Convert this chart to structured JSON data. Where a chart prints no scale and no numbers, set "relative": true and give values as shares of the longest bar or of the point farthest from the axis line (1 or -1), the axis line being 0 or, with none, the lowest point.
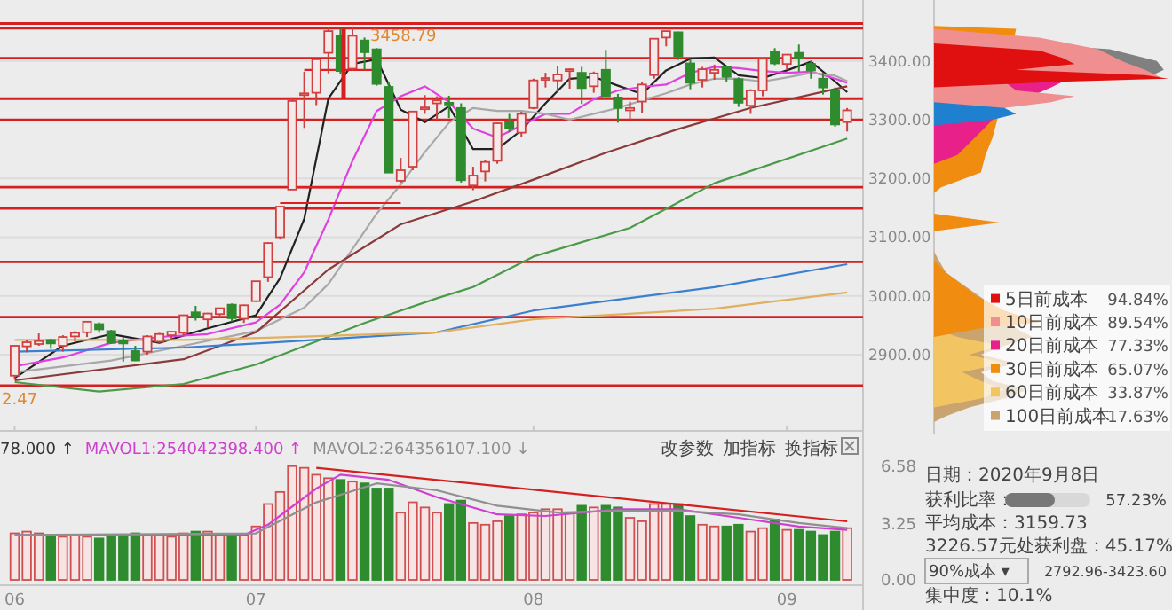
{
  "chart_data": [
    {
      "type": "candlestick",
      "categories": [
        "06",
        null,
        null,
        null,
        null,
        null,
        null,
        null,
        null,
        null,
        null,
        null,
        null,
        null,
        null,
        null,
        null,
        null,
        null,
        null,
        "07",
        null,
        null,
        null,
        null,
        null,
        null,
        null,
        null,
        null,
        null,
        null,
        null,
        null,
        null,
        null,
        null,
        null,
        null,
        null,
        null,
        null,
        null,
        "08",
        null,
        null,
        null,
        null,
        null,
        null,
        null,
        null,
        null,
        null,
        null,
        null,
        null,
        null,
        null,
        null,
        null,
        null,
        null,
        null,
        "09",
        null,
        null,
        null,
        null,
        null
      ],
      "ohlc": [
        [
          2864,
          2916,
          2858,
          2915
        ],
        [
          2914,
          2925,
          2904,
          2921
        ],
        [
          2918,
          2936,
          2915,
          2923
        ],
        [
          2925,
          2927,
          2910,
          2919
        ],
        [
          2915,
          2933,
          2905,
          2930
        ],
        [
          2931,
          2940,
          2922,
          2937
        ],
        [
          2938,
          2957,
          2930,
          2956
        ],
        [
          2952,
          2955,
          2937,
          2943
        ],
        [
          2940,
          2942,
          2918,
          2920
        ],
        [
          2924,
          2930,
          2888,
          2919
        ],
        [
          2906,
          2915,
          2889,
          2890
        ],
        [
          2905,
          2933,
          2900,
          2931
        ],
        [
          2922,
          2937,
          2920,
          2935
        ],
        [
          2933,
          2940,
          2925,
          2939
        ],
        [
          2937,
          2968,
          2932,
          2967
        ],
        [
          2972,
          2983,
          2958,
          2965
        ],
        [
          2960,
          2971,
          2946,
          2970
        ],
        [
          2969,
          2980,
          2962,
          2979
        ],
        [
          2985,
          2987,
          2956,
          2962
        ],
        [
          2961,
          2985,
          2954,
          2984
        ],
        [
          2991,
          3025,
          2990,
          3025
        ],
        [
          3032,
          3091,
          3024,
          3090
        ],
        [
          3100,
          3153,
          3096,
          3152
        ],
        [
          3181,
          3338,
          3181,
          3332
        ],
        [
          3342,
          3382,
          3286,
          3345
        ],
        [
          3346,
          3403,
          3325,
          3403
        ],
        [
          3414,
          3457,
          3379,
          3451
        ],
        [
          3443,
          3455,
          3378,
          3383
        ],
        [
          3387,
          3459,
          3384,
          3443
        ],
        [
          3435,
          3440,
          3385,
          3415
        ],
        [
          3420,
          3422,
          3358,
          3361
        ],
        [
          3356,
          3364,
          3210,
          3210
        ],
        [
          3196,
          3235,
          3193,
          3214
        ],
        [
          3220,
          3315,
          3214,
          3314
        ],
        [
          3320,
          3342,
          3310,
          3321
        ],
        [
          3328,
          3340,
          3300,
          3333
        ],
        [
          3329,
          3341,
          3303,
          3326
        ],
        [
          3320,
          3328,
          3193,
          3197
        ],
        [
          3188,
          3220,
          3180,
          3205
        ],
        [
          3212,
          3232,
          3195,
          3228
        ],
        [
          3230,
          3295,
          3225,
          3294
        ],
        [
          3296,
          3310,
          3279,
          3286
        ],
        [
          3278,
          3314,
          3270,
          3310
        ],
        [
          3320,
          3370,
          3318,
          3367
        ],
        [
          3370,
          3380,
          3355,
          3371
        ],
        [
          3367,
          3391,
          3348,
          3377
        ],
        [
          3385,
          3387,
          3353,
          3386
        ],
        [
          3380,
          3390,
          3327,
          3354
        ],
        [
          3357,
          3382,
          3346,
          3379
        ],
        [
          3385,
          3419,
          3340,
          3340
        ],
        [
          3338,
          3344,
          3295,
          3320
        ],
        [
          3316,
          3331,
          3300,
          3320
        ],
        [
          3331,
          3364,
          3311,
          3360
        ],
        [
          3376,
          3438,
          3370,
          3438
        ],
        [
          3440,
          3451,
          3425,
          3451
        ],
        [
          3449,
          3450,
          3402,
          3408
        ],
        [
          3396,
          3402,
          3352,
          3363
        ],
        [
          3368,
          3390,
          3355,
          3386
        ],
        [
          3380,
          3394,
          3368,
          3385
        ],
        [
          3390,
          3392,
          3365,
          3373
        ],
        [
          3369,
          3372,
          3322,
          3329
        ],
        [
          3324,
          3352,
          3310,
          3350
        ],
        [
          3350,
          3404,
          3340,
          3404
        ],
        [
          3416,
          3422,
          3393,
          3396
        ],
        [
          3395,
          3411,
          3385,
          3411
        ],
        [
          3414,
          3428,
          3382,
          3404
        ],
        [
          3395,
          3400,
          3370,
          3384
        ],
        [
          3370,
          3380,
          3343,
          3355
        ],
        [
          3350,
          3355,
          3288,
          3292
        ],
        [
          3296,
          3320,
          3280,
          3316
        ]
      ],
      "series": [
        {
          "type": "line",
          "color": "#222222",
          "values": [
            2860,
            null,
            null,
            null,
            2915,
            null,
            null,
            null,
            2935,
            null,
            null,
            null,
            2920,
            null,
            null,
            null,
            2945,
            null,
            null,
            null,
            2967,
            null,
            3030,
            null,
            3131,
            null,
            3336,
            null,
            3395,
            null,
            3403,
            null,
            3317,
            null,
            3296,
            null,
            3323,
            null,
            3250,
            null,
            3250,
            null,
            3282,
            null,
            3328,
            null,
            3370,
            null,
            3373,
            null,
            3358,
            null,
            3344,
            null,
            3384,
            null,
            3404,
            null,
            3406,
            null,
            3376,
            null,
            3371,
            null,
            3384,
            null,
            3399,
            null,
            3365,
            3347
          ]
        },
        {
          "type": "line",
          "color": "#e040e0",
          "values": [
            2880,
            null,
            null,
            null,
            2895,
            null,
            null,
            null,
            2920,
            null,
            null,
            null,
            2930,
            null,
            null,
            null,
            2935,
            null,
            null,
            null,
            2955,
            null,
            2985,
            null,
            3040,
            null,
            3130,
            null,
            3230,
            null,
            3315,
            null,
            3340,
            null,
            3357,
            null,
            3330,
            null,
            3285,
            null,
            3270,
            null,
            3290,
            null,
            3310,
            null,
            3310,
            null,
            3335,
            null,
            3350,
            null,
            3356,
            null,
            3360,
            null,
            3380,
            null,
            3390,
            null,
            3388,
            null,
            3383,
            null,
            3380,
            null,
            3382,
            null,
            3370,
            3363
          ]
        },
        {
          "type": "line",
          "color": "#a8a8a8",
          "values": [
            2870,
            null,
            null,
            null,
            null,
            null,
            null,
            null,
            2890,
            null,
            null,
            null,
            null,
            null,
            2915,
            null,
            null,
            null,
            null,
            null,
            2940,
            null,
            null,
            null,
            2980,
            null,
            3020,
            null,
            3080,
            null,
            3140,
            null,
            3190,
            null,
            3245,
            null,
            3295,
            null,
            3320,
            null,
            3315,
            null,
            3315,
            null,
            3310,
            null,
            3300,
            null,
            3310,
            null,
            3320,
            null,
            3333,
            null,
            3345,
            null,
            3360,
            null,
            3370,
            null,
            3370,
            null,
            3365,
            null,
            3372,
            null,
            3380,
            null,
            3375,
            3366
          ]
        },
        {
          "type": "line",
          "color": "#8b3a3a",
          "values": [
            2856,
            null,
            null,
            null,
            null,
            null,
            null,
            null,
            null,
            null,
            null,
            null,
            null,
            null,
            2892,
            null,
            null,
            null,
            null,
            null,
            2938,
            null,
            null,
            null,
            null,
            null,
            3045,
            null,
            null,
            null,
            null,
            null,
            3122,
            null,
            null,
            null,
            null,
            null,
            3161,
            null,
            null,
            null,
            null,
            3198,
            null,
            null,
            null,
            null,
            null,
            3244,
            null,
            null,
            null,
            null,
            null,
            3284,
            null,
            null,
            null,
            null,
            null,
            3320,
            null,
            null,
            null,
            null,
            null,
            null,
            null,
            3357
          ]
        },
        {
          "type": "line",
          "color": "#4a9a4a",
          "values": [
            2853,
            null,
            null,
            null,
            null,
            null,
            null,
            2837,
            null,
            null,
            null,
            null,
            null,
            null,
            2850,
            null,
            null,
            null,
            null,
            null,
            2883,
            null,
            null,
            null,
            null,
            null,
            null,
            null,
            null,
            2954,
            null,
            null,
            null,
            null,
            null,
            2996,
            null,
            null,
            3015,
            null,
            null,
            null,
            null,
            3067,
            null,
            null,
            null,
            null,
            null,
            null,
            null,
            3116,
            null,
            null,
            null,
            null,
            null,
            null,
            3192,
            null,
            null,
            null,
            null,
            null,
            null,
            null,
            null,
            null,
            null,
            3268
          ]
        },
        {
          "type": "line",
          "color": "#3a7fd0",
          "values": [
            2905,
            null,
            null,
            null,
            null,
            null,
            null,
            null,
            null,
            null,
            null,
            null,
            null,
            null,
            2912,
            null,
            null,
            null,
            null,
            null,
            null,
            2920,
            null,
            null,
            null,
            null,
            null,
            null,
            null,
            null,
            null,
            null,
            null,
            null,
            null,
            2938,
            null,
            null,
            null,
            null,
            null,
            null,
            null,
            2975,
            null,
            null,
            null,
            null,
            null,
            null,
            null,
            null,
            null,
            null,
            null,
            null,
            null,
            null,
            3015,
            null,
            null,
            null,
            null,
            null,
            null,
            null,
            null,
            null,
            null,
            3054
          ]
        },
        {
          "type": "line",
          "color": "#e0b060",
          "values": [
            2925,
            null,
            null,
            null,
            null,
            null,
            null,
            null,
            null,
            null,
            null,
            null,
            null,
            null,
            2925,
            null,
            null,
            null,
            null,
            null,
            null,
            2929,
            null,
            null,
            null,
            null,
            null,
            null,
            null,
            null,
            null,
            null,
            null,
            null,
            null,
            2938,
            null,
            null,
            null,
            null,
            null,
            null,
            null,
            2960,
            null,
            null,
            null,
            null,
            null,
            null,
            null,
            null,
            null,
            null,
            null,
            null,
            null,
            null,
            2978,
            null,
            null,
            null,
            null,
            null,
            null,
            null,
            null,
            null,
            null,
            3006
          ]
        },
        {
          "type": "line",
          "color": "#e02020",
          "values": [
            null,
            null,
            null,
            null,
            null,
            null,
            null,
            null,
            null,
            null,
            null,
            null,
            null,
            null,
            null,
            null,
            null,
            null,
            null,
            null,
            null,
            null,
            null,
            null,
            3385,
            null,
            null,
            null,
            null,
            null,
            3385,
            null,
            null,
            null,
            null,
            null,
            null,
            null,
            null,
            null,
            null,
            null,
            null,
            null,
            null,
            null,
            null,
            null,
            null,
            null,
            null,
            null,
            null,
            null,
            null,
            null,
            null,
            null,
            null,
            null,
            null,
            null,
            null,
            null,
            null,
            null,
            null,
            null,
            null,
            null
          ]
        },
        {
          "type": "line",
          "color": "#e02020",
          "values": [
            null,
            null,
            null,
            null,
            null,
            null,
            null,
            null,
            null,
            null,
            null,
            null,
            null,
            null,
            null,
            null,
            null,
            null,
            null,
            null,
            null,
            null,
            null,
            3185,
            null,
            null,
            null,
            null,
            null,
            null,
            null,
            null,
            3185,
            null,
            null,
            null,
            null,
            null,
            null,
            null,
            null,
            null,
            null,
            null,
            null,
            null,
            null,
            null,
            null,
            null,
            null,
            null,
            null,
            null,
            null,
            null,
            null,
            null,
            null,
            null,
            null,
            null,
            null,
            null,
            null,
            null,
            null,
            null,
            null,
            null
          ]
        },
        {
          "type": "line",
          "color": "#e02020",
          "values": [
            null,
            null,
            null,
            null,
            null,
            null,
            null,
            null,
            null,
            null,
            null,
            null,
            null,
            null,
            null,
            null,
            null,
            null,
            null,
            null,
            null,
            null,
            3158,
            null,
            null,
            null,
            null,
            null,
            null,
            null,
            null,
            null,
            3158,
            null,
            null,
            null,
            null,
            null,
            null,
            null,
            null,
            null,
            null,
            null,
            null,
            null,
            null,
            null,
            null,
            null,
            null,
            null,
            null,
            null,
            null,
            null,
            null,
            null,
            null,
            null,
            null,
            null,
            null,
            null,
            null,
            null,
            null,
            null,
            null,
            null
          ]
        }
      ],
      "ref_lines": [
        {
          "axis": "y",
          "value": 3464,
          "color": "#d42020"
        },
        {
          "axis": "y",
          "value": 3456,
          "color": "#d42020"
        },
        {
          "axis": "y",
          "value": 3405,
          "color": "#d42020"
        },
        {
          "axis": "y",
          "value": 3336,
          "color": "#d42020"
        },
        {
          "axis": "y",
          "value": 3300,
          "color": "#d42020"
        },
        {
          "axis": "y",
          "value": 3185,
          "color": "#d42020"
        },
        {
          "axis": "y",
          "value": 3149,
          "color": "#d42020"
        },
        {
          "axis": "y",
          "value": 3058,
          "color": "#d42020"
        },
        {
          "axis": "y",
          "value": 2964,
          "color": "#d42020"
        },
        {
          "axis": "y",
          "value": 2847,
          "color": "#d42020"
        }
      ],
      "ylim": [
        2770,
        3504
      ],
      "yticks": [
        {
          "value": 3400,
          "label": "3400.00"
        },
        {
          "value": 3300,
          "label": "3300.00"
        },
        {
          "value": 3200,
          "label": "3200.00"
        },
        {
          "value": 3100,
          "label": "3100.00"
        },
        {
          "value": 3000,
          "label": "3000.00"
        },
        {
          "value": 2900,
          "label": "2900.00"
        }
      ],
      "grid": "y",
      "tick_labels": "y",
      "annotations": [
        "3458.79",
        "2.47"
      ]
    },
    {
      "type": "bar",
      "categories": [
        "06",
        null,
        null,
        null,
        null,
        null,
        null,
        null,
        null,
        null,
        null,
        null,
        null,
        null,
        null,
        null,
        null,
        null,
        null,
        null,
        "07",
        null,
        null,
        null,
        null,
        null,
        null,
        null,
        null,
        null,
        null,
        null,
        null,
        null,
        null,
        null,
        null,
        null,
        null,
        null,
        null,
        null,
        null,
        "08",
        null,
        null,
        null,
        null,
        null,
        null,
        null,
        null,
        null,
        null,
        null,
        null,
        null,
        null,
        null,
        null,
        null,
        null,
        null,
        null,
        "09",
        null,
        null,
        null,
        null,
        null
      ],
      "series": [
        {
          "values": [
            2.7,
            2.8,
            2.7,
            2.6,
            2.5,
            2.6,
            2.5,
            2.4,
            2.6,
            2.5,
            2.7,
            2.6,
            2.6,
            2.5,
            2.7,
            2.8,
            2.8,
            2.6,
            2.5,
            2.6,
            3.1,
            4.4,
            5.1,
            6.6,
            6.5,
            6.1,
            5.9,
            5.8,
            5.7,
            5.6,
            5.3,
            5.3,
            3.9,
            4.5,
            4.2,
            3.9,
            4.4,
            4.6,
            3.3,
            3.2,
            3.4,
            3.7,
            3.8,
            3.9,
            4.1,
            4.1,
            3.9,
            4.3,
            4.2,
            4.3,
            4.2,
            3.6,
            3.4,
            4.4,
            4.4,
            4.4,
            3.7,
            3.2,
            3.1,
            3.1,
            3.2,
            2.8,
            3.0,
            3.5,
            2.9,
            2.9,
            2.8,
            2.6,
            2.8,
            3.0
          ],
          "colors": [
            "#d05050",
            "#d05050",
            "#d05050",
            "#2e8b2e",
            "#d05050",
            "#d05050",
            "#d05050",
            "#2e8b2e",
            "#2e8b2e",
            "#2e8b2e",
            "#2e8b2e",
            "#d05050",
            "#d05050",
            "#d05050",
            "#d05050",
            "#2e8b2e",
            "#d05050",
            "#d05050",
            "#2e8b2e",
            "#d05050",
            "#d05050",
            "#d05050",
            "#d05050",
            "#d05050",
            "#d05050",
            "#d05050",
            "#d05050",
            "#2e8b2e",
            "#d05050",
            "#2e8b2e",
            "#2e8b2e",
            "#2e8b2e",
            "#d05050",
            "#d05050",
            "#d05050",
            "#d05050",
            "#2e8b2e",
            "#2e8b2e",
            "#d05050",
            "#d05050",
            "#d05050",
            "#2e8b2e",
            "#d05050",
            "#d05050",
            "#d05050",
            "#d05050",
            "#d05050",
            "#2e8b2e",
            "#d05050",
            "#2e8b2e",
            "#2e8b2e",
            "#d05050",
            "#d05050",
            "#d05050",
            "#d05050",
            "#2e8b2e",
            "#2e8b2e",
            "#d05050",
            "#d05050",
            "#2e8b2e",
            "#2e8b2e",
            "#d05050",
            "#d05050",
            "#2e8b2e",
            "#d05050",
            "#2e8b2e",
            "#2e8b2e",
            "#2e8b2e",
            "#2e8b2e",
            "#d05050"
          ]
        },
        {
          "type": "line",
          "name": "MAVOL1:254042398.400 ↑",
          "color": "#d040d0",
          "values": [
            2.6,
            null,
            null,
            null,
            null,
            null,
            null,
            null,
            null,
            null,
            null,
            null,
            null,
            null,
            null,
            null,
            null,
            null,
            null,
            2.6,
            null,
            3.2,
            null,
            null,
            null,
            5.3,
            null,
            6.1,
            null,
            null,
            null,
            5.8,
            null,
            null,
            null,
            4.8,
            null,
            null,
            null,
            null,
            3.8,
            null,
            null,
            null,
            3.7,
            null,
            null,
            null,
            null,
            null,
            4.1,
            null,
            null,
            null,
            null,
            4.1,
            null,
            null,
            null,
            null,
            3.6,
            null,
            null,
            null,
            null,
            3.1,
            null,
            null,
            null,
            2.9
          ]
        },
        {
          "type": "line",
          "name": "MAVOL2:264356107.100 ↓",
          "color": "#909090",
          "values": [
            2.6,
            null,
            null,
            null,
            null,
            null,
            null,
            null,
            null,
            null,
            null,
            null,
            null,
            null,
            null,
            null,
            null,
            null,
            null,
            null,
            2.7,
            null,
            null,
            null,
            null,
            4.5,
            null,
            null,
            null,
            null,
            5.6,
            null,
            null,
            null,
            null,
            5.2,
            null,
            null,
            null,
            null,
            4.3,
            null,
            null,
            null,
            null,
            3.9,
            null,
            null,
            null,
            null,
            4.0,
            null,
            null,
            null,
            null,
            4.0,
            null,
            null,
            null,
            null,
            3.8,
            null,
            null,
            null,
            null,
            3.3,
            null,
            null,
            null,
            3.0
          ]
        },
        {
          "type": "line",
          "color": "#d42020",
          "values": [
            null,
            null,
            null,
            null,
            null,
            null,
            null,
            null,
            null,
            null,
            null,
            null,
            null,
            null,
            null,
            null,
            null,
            null,
            null,
            null,
            null,
            null,
            null,
            null,
            null,
            6.5,
            null,
            null,
            null,
            null,
            null,
            null,
            null,
            null,
            null,
            null,
            null,
            null,
            null,
            null,
            null,
            null,
            null,
            null,
            null,
            null,
            null,
            null,
            null,
            null,
            null,
            null,
            null,
            null,
            null,
            null,
            null,
            null,
            null,
            null,
            null,
            null,
            null,
            null,
            null,
            null,
            null,
            null,
            null,
            3.4
          ]
        }
      ],
      "ylim": [
        0,
        7.1
      ],
      "yticks": [
        6.58,
        3.25,
        {
          "value": 0,
          "label": "0.00"
        }
      ],
      "legend": "top left",
      "annotations": [
        "78.000 ↑",
        "改参数",
        "加指标",
        "换指标"
      ]
    },
    {
      "type": "area",
      "orientation": "horizontal",
      "relative": true,
      "ylim": [
        2770,
        3504
      ],
      "legend": "bottom right",
      "series": [
        {
          "color": "#2080d0",
          "x": [
            3330,
            3320,
            3310,
            3300,
            3290
          ],
          "values": [
            0,
            0.3,
            0.35,
            0.25,
            0
          ]
        },
        {
          "name": "5日前成本",
          "color": "#e01010",
          "x": [
            3430,
            3418,
            3405,
            3395,
            3385,
            3376,
            3370,
            3364,
            3355
          ],
          "values": [
            0,
            0.45,
            0.55,
            0.6,
            0.35,
            0.9,
            1.0,
            0.5,
            0
          ]
        },
        {
          "name": "10日前成本",
          "color": "#f08f8f",
          "x": [
            3455,
            3440,
            3420,
            3400,
            3385,
            3372,
            3365,
            3350,
            3340,
            3330,
            3320,
            3300
          ],
          "values": [
            0,
            0.45,
            0.7,
            0.8,
            0.9,
            0.97,
            0.3,
            0.35,
            0.6,
            0.5,
            0.3,
            0
          ]
        },
        {
          "name": "20日前成本",
          "color": "#e8208a",
          "x": [
            3395,
            3365,
            3355,
            3320,
            3300,
            3280,
            3260,
            3240,
            3225
          ],
          "values": [
            0,
            0.55,
            0.5,
            0.3,
            0.25,
            0.2,
            0.15,
            0.1,
            0
          ]
        },
        {
          "color": "#808080",
          "x": [
            3440,
            3420,
            3400,
            3385,
            3370,
            3360
          ],
          "values": [
            0,
            0.75,
            0.95,
            0.98,
            0.9,
            0
          ]
        },
        {
          "name": "30日前成本",
          "color": "#f08c10",
          "x": [
            3460,
            3455,
            3300,
            3270,
            3240,
            3210,
            3185,
            3175,
            3140,
            3125,
            3110,
            3060,
            3040,
            3000,
            2975,
            2955,
            2945,
            2930
          ],
          "values": [
            0,
            0.35,
            0.27,
            0.25,
            0.22,
            0.2,
            0.03,
            0,
            0,
            0.28,
            0,
            0,
            0.05,
            0.18,
            0.3,
            0.45,
            0.2,
            0
          ]
        },
        {
          "name": "60日前成本",
          "color": "#f2c462",
          "x": [
            2945,
            2930,
            2915,
            2900,
            2885,
            2870,
            2855,
            2840,
            2825,
            2810
          ],
          "values": [
            0,
            0.1,
            0.28,
            0.15,
            0.3,
            0.12,
            0.2,
            0.3,
            0.2,
            0
          ]
        },
        {
          "name": "100日前成本",
          "color": "#c9a46e",
          "x": [
            3075,
            3040,
            2975,
            2945,
            2930,
            2915,
            2900,
            2885,
            2870,
            2855,
            2840,
            2825,
            2810,
            2795,
            2785
          ],
          "values": [
            0,
            0.05,
            0.28,
            0.35,
            0.42,
            0.3,
            0.2,
            0.35,
            0.2,
            0.25,
            0.4,
            0.3,
            0.15,
            0.05,
            0
          ]
        }
      ],
      "annotations": [
        "94.84%",
        "89.54%",
        "77.33%",
        "65.07%",
        "33.87%",
        "17.63%"
      ]
    },
    {
      "type": "other",
      "annotations": [
        "日期：2020年9月8日",
        "获利比率：",
        "57.23%",
        "平均成本：3159.73",
        "3226.57元处获利盘：45.17%",
        "90%成本 ▾",
        "2792.96-3423.60",
        "集中度：10.1%"
      ]
    }
  ]
}
